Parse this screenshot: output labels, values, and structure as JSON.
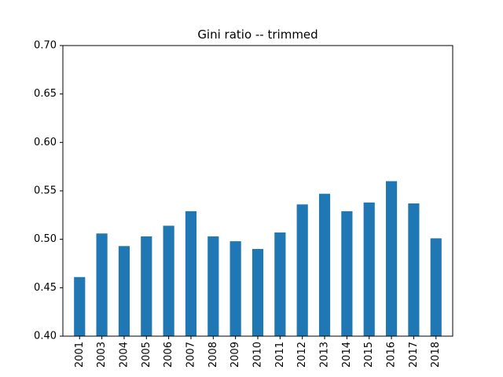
{
  "chart_data": {
    "type": "bar",
    "title": "Gini ratio -- trimmed",
    "xlabel": "",
    "ylabel": "",
    "categories": [
      "2001",
      "2003",
      "2004",
      "2005",
      "2006",
      "2007",
      "2008",
      "2009",
      "2010",
      "2011",
      "2012",
      "2013",
      "2014",
      "2015",
      "2016",
      "2017",
      "2018"
    ],
    "values": [
      0.461,
      0.506,
      0.493,
      0.503,
      0.514,
      0.529,
      0.503,
      0.498,
      0.49,
      0.507,
      0.536,
      0.547,
      0.529,
      0.538,
      0.56,
      0.537,
      0.501
    ],
    "ylim": [
      0.4,
      0.7
    ],
    "yticks": [
      "0.40",
      "0.45",
      "0.50",
      "0.55",
      "0.60",
      "0.65",
      "0.70"
    ],
    "grid": false,
    "bar_color": "#1f77b4"
  }
}
